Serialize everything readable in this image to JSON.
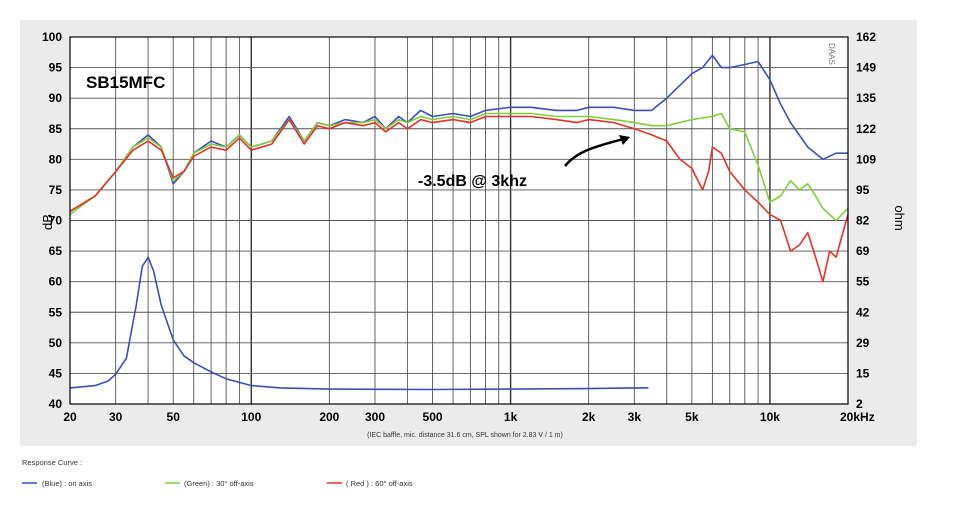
{
  "chart_data": {
    "type": "line",
    "title": "SB15MFC",
    "annotation": "-3.5dB @ 3khz",
    "footnote": "(IEC baffle, mic. distance 31.6 cm, SPL shown for 2.83 V / 1 m)",
    "ylabel": "dB",
    "y2label": "ohm",
    "xscale": "log",
    "xlim": [
      20,
      20000
    ],
    "ylim": [
      40,
      100
    ],
    "y2lim": [
      2,
      162
    ],
    "grid": true,
    "x_ticks": [
      {
        "v": 20,
        "label": "20"
      },
      {
        "v": 30,
        "label": "30"
      },
      {
        "v": 50,
        "label": "50"
      },
      {
        "v": 100,
        "label": "100"
      },
      {
        "v": 200,
        "label": "200"
      },
      {
        "v": 300,
        "label": "300"
      },
      {
        "v": 500,
        "label": "500"
      },
      {
        "v": 1000,
        "label": "1k"
      },
      {
        "v": 2000,
        "label": "2k"
      },
      {
        "v": 3000,
        "label": "3k"
      },
      {
        "v": 5000,
        "label": "5k"
      },
      {
        "v": 10000,
        "label": "10k"
      },
      {
        "v": 20000,
        "label": "20kHz"
      }
    ],
    "y_ticks": [
      "100",
      "95",
      "90",
      "85",
      "80",
      "75",
      "70",
      "65",
      "60",
      "55",
      "50",
      "45",
      "40"
    ],
    "y2_ticks": [
      "162",
      "149",
      "135",
      "122",
      "109",
      "95",
      "82",
      "69",
      "55",
      "42",
      "29",
      "15",
      "2"
    ],
    "legend_title": "Response Curve :",
    "legend": [
      {
        "label": "(Blue)  : on axis",
        "color": "#3a4fb8"
      },
      {
        "label": "(Green) : 30° off-axis",
        "color": "#7fcf3a"
      },
      {
        "label": "( Red ) : 60° off-axis",
        "color": "#e8302a"
      }
    ],
    "series": [
      {
        "color": "#3a4fb8",
        "values": [
          [
            20,
            71.5
          ],
          [
            25,
            74
          ],
          [
            30,
            78
          ],
          [
            35,
            82
          ],
          [
            40,
            84
          ],
          [
            45,
            82
          ],
          [
            50,
            76
          ],
          [
            55,
            78
          ],
          [
            60,
            81
          ],
          [
            70,
            83
          ],
          [
            80,
            82
          ],
          [
            90,
            84
          ],
          [
            100,
            82
          ],
          [
            120,
            83
          ],
          [
            140,
            87
          ],
          [
            160,
            83
          ],
          [
            180,
            86
          ],
          [
            200,
            85.5
          ],
          [
            230,
            86.5
          ],
          [
            270,
            86
          ],
          [
            300,
            87
          ],
          [
            330,
            85
          ],
          [
            370,
            87
          ],
          [
            400,
            86
          ],
          [
            450,
            88
          ],
          [
            500,
            87
          ],
          [
            600,
            87.5
          ],
          [
            700,
            87
          ],
          [
            800,
            88
          ],
          [
            1000,
            88.5
          ],
          [
            1200,
            88.5
          ],
          [
            1500,
            88
          ],
          [
            1800,
            88
          ],
          [
            2000,
            88.5
          ],
          [
            2500,
            88.5
          ],
          [
            3000,
            88
          ],
          [
            3500,
            88
          ],
          [
            4000,
            90
          ],
          [
            5000,
            94
          ],
          [
            5500,
            95
          ],
          [
            6000,
            97
          ],
          [
            6500,
            95
          ],
          [
            7000,
            95
          ],
          [
            8000,
            95.5
          ],
          [
            9000,
            96
          ],
          [
            10000,
            93
          ],
          [
            11000,
            89
          ],
          [
            12000,
            86
          ],
          [
            14000,
            82
          ],
          [
            16000,
            80
          ],
          [
            18000,
            81
          ],
          [
            20000,
            81
          ]
        ]
      },
      {
        "color": "#7fcf3a",
        "values": [
          [
            20,
            71
          ],
          [
            25,
            74
          ],
          [
            30,
            78
          ],
          [
            35,
            82
          ],
          [
            40,
            83.5
          ],
          [
            45,
            82
          ],
          [
            50,
            76.5
          ],
          [
            55,
            78
          ],
          [
            60,
            81
          ],
          [
            70,
            82.5
          ],
          [
            80,
            82
          ],
          [
            90,
            84
          ],
          [
            100,
            82
          ],
          [
            120,
            83
          ],
          [
            140,
            86.5
          ],
          [
            160,
            83
          ],
          [
            180,
            86
          ],
          [
            200,
            85.5
          ],
          [
            230,
            86
          ],
          [
            270,
            86
          ],
          [
            300,
            86.5
          ],
          [
            330,
            85
          ],
          [
            370,
            86.5
          ],
          [
            400,
            86
          ],
          [
            450,
            87
          ],
          [
            500,
            86.5
          ],
          [
            600,
            87
          ],
          [
            700,
            86.5
          ],
          [
            800,
            87.5
          ],
          [
            1000,
            87.5
          ],
          [
            1200,
            87.5
          ],
          [
            1500,
            87
          ],
          [
            1800,
            87
          ],
          [
            2000,
            87
          ],
          [
            2500,
            86.5
          ],
          [
            3000,
            86
          ],
          [
            3500,
            85.5
          ],
          [
            4000,
            85.5
          ],
          [
            5000,
            86.5
          ],
          [
            6000,
            87
          ],
          [
            6500,
            87.5
          ],
          [
            7000,
            85
          ],
          [
            8000,
            84.5
          ],
          [
            9000,
            79
          ],
          [
            10000,
            73
          ],
          [
            11000,
            74
          ],
          [
            12000,
            76.5
          ],
          [
            13000,
            75
          ],
          [
            14000,
            76
          ],
          [
            15000,
            74
          ],
          [
            16000,
            72
          ],
          [
            18000,
            70
          ],
          [
            20000,
            72
          ]
        ]
      },
      {
        "color": "#e8302a",
        "values": [
          [
            20,
            71.5
          ],
          [
            25,
            74
          ],
          [
            30,
            78
          ],
          [
            35,
            81.5
          ],
          [
            40,
            83
          ],
          [
            45,
            81.5
          ],
          [
            50,
            77
          ],
          [
            55,
            78
          ],
          [
            60,
            80.5
          ],
          [
            70,
            82
          ],
          [
            80,
            81.5
          ],
          [
            90,
            83.5
          ],
          [
            100,
            81.5
          ],
          [
            120,
            82.5
          ],
          [
            140,
            86.5
          ],
          [
            160,
            82.5
          ],
          [
            180,
            85.5
          ],
          [
            200,
            85
          ],
          [
            230,
            86
          ],
          [
            270,
            85.5
          ],
          [
            300,
            86
          ],
          [
            330,
            84.5
          ],
          [
            370,
            86
          ],
          [
            400,
            85
          ],
          [
            450,
            86.5
          ],
          [
            500,
            86
          ],
          [
            600,
            86.5
          ],
          [
            700,
            86
          ],
          [
            800,
            87
          ],
          [
            1000,
            87
          ],
          [
            1200,
            87
          ],
          [
            1500,
            86.5
          ],
          [
            1800,
            86
          ],
          [
            2000,
            86.5
          ],
          [
            2500,
            86
          ],
          [
            3000,
            85
          ],
          [
            3500,
            84
          ],
          [
            4000,
            83
          ],
          [
            4500,
            80
          ],
          [
            5000,
            78.5
          ],
          [
            5500,
            75
          ],
          [
            5800,
            78
          ],
          [
            6000,
            82
          ],
          [
            6500,
            81
          ],
          [
            7000,
            78
          ],
          [
            8000,
            75
          ],
          [
            9000,
            73
          ],
          [
            10000,
            71
          ],
          [
            11000,
            70
          ],
          [
            12000,
            65
          ],
          [
            13000,
            66
          ],
          [
            14000,
            68
          ],
          [
            15000,
            64
          ],
          [
            16000,
            60
          ],
          [
            17000,
            65
          ],
          [
            18000,
            64
          ],
          [
            20000,
            71
          ]
        ]
      },
      {
        "axis": "right",
        "color": "#3a4fb8",
        "values": [
          [
            20,
            9
          ],
          [
            25,
            10
          ],
          [
            28,
            12
          ],
          [
            30,
            15
          ],
          [
            33,
            22
          ],
          [
            36,
            45
          ],
          [
            38,
            62
          ],
          [
            40,
            66
          ],
          [
            42,
            60
          ],
          [
            45,
            45
          ],
          [
            50,
            30
          ],
          [
            55,
            23
          ],
          [
            60,
            20
          ],
          [
            70,
            16
          ],
          [
            80,
            13
          ],
          [
            100,
            10
          ],
          [
            130,
            9
          ],
          [
            200,
            8.5
          ],
          [
            500,
            8.3
          ],
          [
            1000,
            8.5
          ],
          [
            2000,
            8.7
          ],
          [
            3000,
            9
          ],
          [
            3400,
            9
          ]
        ]
      }
    ]
  }
}
